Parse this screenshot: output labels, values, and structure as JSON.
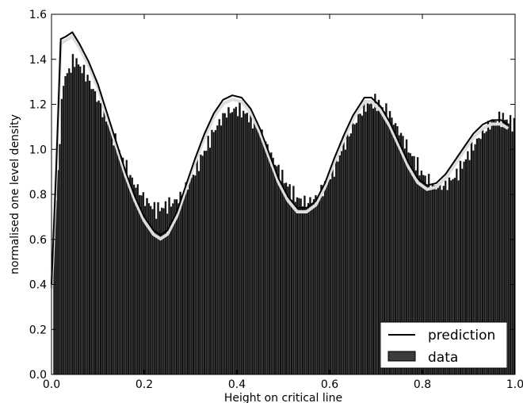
{
  "chart_data": {
    "type": "bar",
    "title": "",
    "xlabel": "Height on critical line",
    "ylabel": "normalised one level density",
    "xlim": [
      0.0,
      1.0
    ],
    "ylim": [
      0.0,
      1.6
    ],
    "xticks": [
      "0.0",
      "0.2",
      "0.4",
      "0.6",
      "0.8",
      "1.0"
    ],
    "yticks": [
      "0.0",
      "0.2",
      "0.4",
      "0.6",
      "0.8",
      "1.0",
      "1.2",
      "1.4",
      "1.6"
    ],
    "legend": {
      "position": "bottom-right",
      "entries": [
        "prediction",
        "data"
      ]
    },
    "colors": {
      "bars": "#111111",
      "bar_gap": "#8a8a8a",
      "prediction": "#000000"
    },
    "series": [
      {
        "name": "prediction",
        "type": "line",
        "x": [
          0.0,
          0.01,
          0.02,
          0.03,
          0.045,
          0.06,
          0.08,
          0.1,
          0.12,
          0.14,
          0.16,
          0.18,
          0.2,
          0.22,
          0.235,
          0.25,
          0.27,
          0.29,
          0.31,
          0.33,
          0.35,
          0.37,
          0.39,
          0.41,
          0.43,
          0.45,
          0.47,
          0.49,
          0.51,
          0.53,
          0.55,
          0.57,
          0.59,
          0.61,
          0.63,
          0.65,
          0.675,
          0.69,
          0.71,
          0.73,
          0.75,
          0.77,
          0.79,
          0.81,
          0.83,
          0.85,
          0.87,
          0.89,
          0.91,
          0.93,
          0.95,
          0.97,
          0.985
        ],
        "y": [
          0.4,
          0.9,
          1.49,
          1.5,
          1.52,
          1.47,
          1.39,
          1.29,
          1.16,
          1.03,
          0.9,
          0.79,
          0.7,
          0.64,
          0.62,
          0.64,
          0.72,
          0.84,
          0.96,
          1.07,
          1.16,
          1.22,
          1.24,
          1.23,
          1.18,
          1.09,
          0.98,
          0.87,
          0.79,
          0.74,
          0.74,
          0.77,
          0.85,
          0.96,
          1.06,
          1.15,
          1.23,
          1.23,
          1.19,
          1.12,
          1.03,
          0.94,
          0.87,
          0.84,
          0.85,
          0.89,
          0.95,
          1.01,
          1.07,
          1.11,
          1.13,
          1.13,
          1.11
        ]
      },
      {
        "name": "data",
        "type": "bar",
        "x": [
          0.0,
          0.025,
          0.05,
          0.075,
          0.1,
          0.125,
          0.15,
          0.175,
          0.2,
          0.225,
          0.25,
          0.275,
          0.3,
          0.325,
          0.35,
          0.375,
          0.4,
          0.425,
          0.45,
          0.475,
          0.5,
          0.525,
          0.55,
          0.575,
          0.6,
          0.625,
          0.65,
          0.675,
          0.7,
          0.725,
          0.75,
          0.775,
          0.8,
          0.825,
          0.85,
          0.875,
          0.9,
          0.925,
          0.95,
          0.975,
          1.0
        ],
        "y": [
          0.4,
          1.3,
          1.4,
          1.33,
          1.22,
          1.1,
          0.97,
          0.86,
          0.78,
          0.73,
          0.75,
          0.78,
          0.86,
          0.97,
          1.08,
          1.16,
          1.18,
          1.15,
          1.08,
          0.97,
          0.87,
          0.79,
          0.76,
          0.79,
          0.87,
          0.99,
          1.1,
          1.19,
          1.21,
          1.17,
          1.08,
          0.98,
          0.89,
          0.83,
          0.84,
          0.89,
          0.98,
          1.06,
          1.12,
          1.14,
          1.11
        ]
      }
    ]
  }
}
